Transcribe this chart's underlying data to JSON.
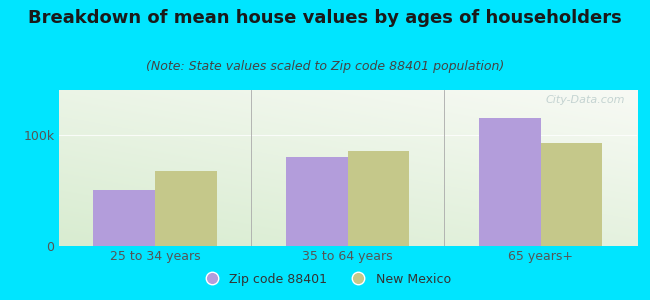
{
  "title": "Breakdown of mean house values by ages of householders",
  "subtitle": "(Note: State values scaled to Zip code 88401 population)",
  "categories": [
    "25 to 34 years",
    "35 to 64 years",
    "65 years+"
  ],
  "zip_values": [
    50000,
    80000,
    115000
  ],
  "state_values": [
    67000,
    85000,
    92000
  ],
  "zip_color": "#b39ddb",
  "state_color": "#c5c88a",
  "yticks": [
    0,
    100000
  ],
  "ytick_labels": [
    "0",
    "100k"
  ],
  "ylim": [
    0,
    140000
  ],
  "background_outer": "#00e5ff",
  "legend_zip_label": "Zip code 88401",
  "legend_state_label": "New Mexico",
  "bar_width": 0.32,
  "watermark": "City-Data.com",
  "title_fontsize": 13,
  "subtitle_fontsize": 9,
  "tick_fontsize": 9,
  "title_color": "#1a1a1a",
  "subtitle_color": "#444444",
  "tick_color": "#555555"
}
